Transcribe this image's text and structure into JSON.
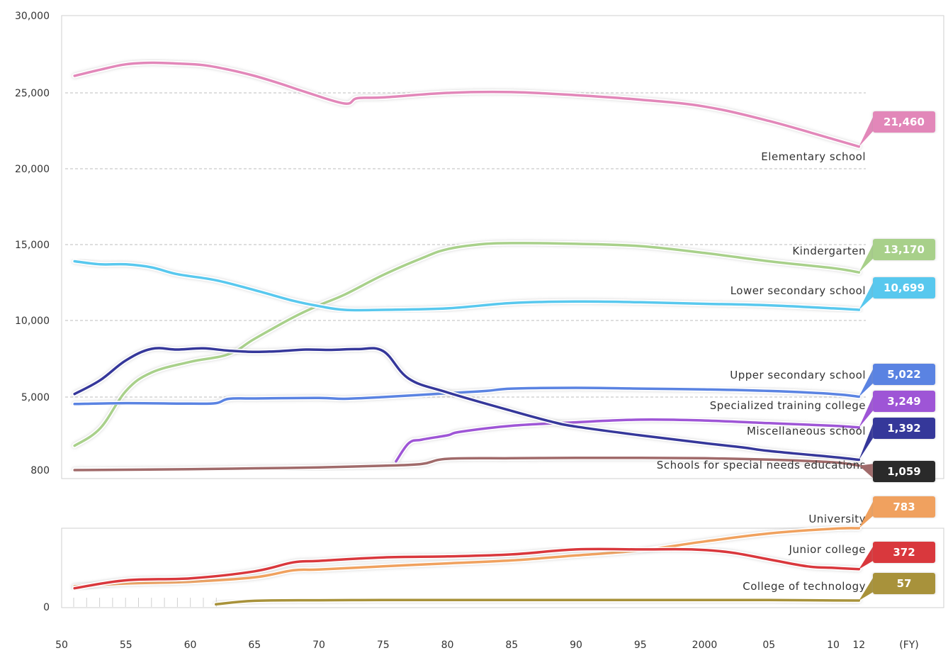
{
  "chart_data": {
    "type": "line",
    "title": "",
    "xlabel": "",
    "x_unit": "(FY)",
    "x_tick_labels": [
      "50",
      "55",
      "60",
      "65",
      "70",
      "75",
      "80",
      "85",
      "90",
      "95",
      "2000",
      "05",
      "10",
      "12"
    ],
    "x_tick_years": [
      1950,
      1955,
      1960,
      1965,
      1970,
      1975,
      1980,
      1985,
      1990,
      1995,
      2000,
      2005,
      2010,
      2012
    ],
    "upper_panel": {
      "y_tick_labels": [
        "800",
        "5,000",
        "10,000",
        "15,000",
        "20,000",
        "25,000",
        "30,000"
      ],
      "y_tick_values": [
        800,
        5000,
        10000,
        15000,
        20000,
        25000,
        30000
      ],
      "grid": "dashed at 5,000 / 10,000 / 15,000 / 20,000 / 25,000"
    },
    "lower_panel": {
      "y_tick_labels": [
        "0"
      ],
      "y_tick_values": [
        0
      ]
    },
    "series": [
      {
        "name": "Elementary school",
        "label": "21,460",
        "color": "#e287b9",
        "panel": "upper",
        "x": [
          1951,
          1953,
          1955,
          1957,
          1959,
          1961,
          1963,
          1965,
          1967,
          1969,
          1972,
          1973,
          1975,
          1980,
          1985,
          1990,
          1995,
          2000,
          2005,
          2010,
          2012
        ],
        "y": [
          26100,
          26500,
          26850,
          26950,
          26900,
          26800,
          26500,
          26100,
          25600,
          25050,
          24300,
          24650,
          24700,
          25000,
          25050,
          24850,
          24550,
          24100,
          23150,
          21950,
          21460
        ]
      },
      {
        "name": "Kindergarten",
        "label": "13,170",
        "color": "#a8d08a",
        "panel": "upper",
        "x": [
          1951,
          1953,
          1955,
          1957,
          1960,
          1963,
          1965,
          1968,
          1970,
          1972,
          1975,
          1978,
          1980,
          1983,
          1986,
          1990,
          1995,
          2000,
          2005,
          2010,
          2012
        ],
        "y": [
          2200,
          3200,
          5400,
          6600,
          7300,
          7800,
          8800,
          10200,
          11000,
          11700,
          13000,
          14100,
          14700,
          15050,
          15100,
          15050,
          14900,
          14450,
          13900,
          13450,
          13170
        ]
      },
      {
        "name": "Lower secondary school",
        "label": "10,699",
        "color": "#58c8ee",
        "panel": "upper",
        "x": [
          1951,
          1953,
          1955,
          1957,
          1959,
          1962,
          1965,
          1968,
          1970,
          1972,
          1975,
          1980,
          1985,
          1990,
          1995,
          2000,
          2005,
          2010,
          2012
        ],
        "y": [
          13900,
          13700,
          13700,
          13500,
          13050,
          12650,
          12000,
          11300,
          10950,
          10700,
          10700,
          10800,
          11150,
          11250,
          11200,
          11100,
          11000,
          10800,
          10699
        ]
      },
      {
        "name": "Upper secondary school",
        "label": "5,022",
        "color": "#5a83e2",
        "panel": "upper",
        "x": [
          1951,
          1955,
          1960,
          1962,
          1963,
          1965,
          1970,
          1972,
          1975,
          1980,
          1983,
          1985,
          1990,
          1995,
          2000,
          2005,
          2010,
          2012
        ],
        "y": [
          4600,
          4650,
          4620,
          4650,
          4900,
          4920,
          4950,
          4900,
          5000,
          5250,
          5400,
          5550,
          5600,
          5550,
          5500,
          5400,
          5200,
          5022
        ]
      },
      {
        "name": "Specialized training college",
        "label": "3,249",
        "color": "#9e55d6",
        "panel": "upper",
        "x": [
          1976,
          1977,
          1978,
          1980,
          1981,
          1985,
          1990,
          1995,
          2000,
          2005,
          2010,
          2012
        ],
        "y": [
          1300,
          2350,
          2550,
          2800,
          3000,
          3350,
          3550,
          3700,
          3650,
          3500,
          3350,
          3249
        ]
      },
      {
        "name": "Miscellaneous school",
        "label": "1,392",
        "color": "#35379a",
        "panel": "upper",
        "x": [
          1951,
          1953,
          1955,
          1957,
          1959,
          1961,
          1963,
          1965,
          1967,
          1969,
          1971,
          1973,
          1975,
          1977,
          1980,
          1985,
          1988,
          1990,
          1995,
          2000,
          2003,
          2005,
          2010,
          2012
        ],
        "y": [
          5200,
          6100,
          7400,
          8150,
          8100,
          8180,
          8030,
          7950,
          8000,
          8100,
          8080,
          8130,
          8000,
          6200,
          5300,
          4200,
          3600,
          3300,
          2800,
          2350,
          2100,
          1900,
          1550,
          1392
        ]
      },
      {
        "name": "Schools for special needs educations",
        "label": "1,059",
        "color": "#a06a6a",
        "panel": "upper",
        "x": [
          1951,
          1960,
          1965,
          1970,
          1975,
          1978,
          1980,
          1985,
          1990,
          1995,
          2000,
          2005,
          2010,
          2012
        ],
        "y": [
          800,
          850,
          900,
          950,
          1050,
          1150,
          1450,
          1480,
          1500,
          1500,
          1480,
          1400,
          1250,
          1059
        ]
      },
      {
        "name": "University",
        "label": "783",
        "color": "#f0a15e",
        "panel": "lower",
        "x": [
          1951,
          1955,
          1960,
          1965,
          1968,
          1970,
          1975,
          1980,
          1985,
          1990,
          1995,
          2000,
          2005,
          2010,
          2012
        ],
        "y": [
          200,
          228,
          245,
          290,
          360,
          368,
          400,
          430,
          460,
          510,
          560,
          650,
          730,
          778,
          783
        ]
      },
      {
        "name": "Junior college",
        "label": "372",
        "color": "#d9373c",
        "panel": "lower",
        "x": [
          1951,
          1955,
          1960,
          1965,
          1968,
          1970,
          1975,
          1980,
          1985,
          1990,
          1995,
          1999,
          2002,
          2005,
          2008,
          2010,
          2012
        ],
        "y": [
          180,
          260,
          280,
          350,
          440,
          455,
          490,
          500,
          520,
          570,
          570,
          570,
          540,
          470,
          400,
          385,
          372
        ]
      },
      {
        "name": "College of technology",
        "label": "57",
        "color": "#a8923a",
        "panel": "lower",
        "x": [
          1962,
          1965,
          1970,
          1975,
          1980,
          1985,
          1990,
          1995,
          2000,
          2005,
          2010,
          2012
        ],
        "y": [
          19,
          54,
          60,
          62,
          62,
          62,
          62,
          62,
          62,
          62,
          58,
          57
        ]
      }
    ]
  }
}
